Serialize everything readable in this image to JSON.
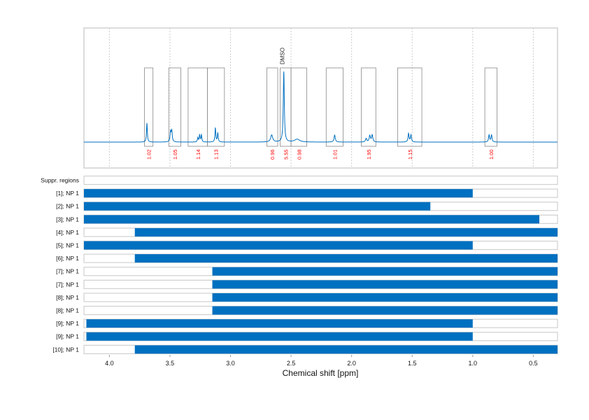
{
  "chart_data": {
    "type": "bar",
    "xlabel": "Chemical shift [ppm]",
    "xlim": [
      4.21,
      0.3
    ],
    "x_ticks": [
      "4.0",
      "3.5",
      "3.0",
      "2.5",
      "2.0",
      "1.5",
      "1.0",
      "0.5"
    ],
    "x_tick_values": [
      4.0,
      3.5,
      3.0,
      2.5,
      2.0,
      1.5,
      1.0,
      0.5
    ],
    "grid": true,
    "colors": {
      "spectrum": "#0070c0",
      "bar": "#0070c0",
      "integral_label": "#ff0000",
      "region_box": "#888888"
    },
    "spectrum": {
      "peaks": [
        {
          "ppm": 3.69,
          "height": 0.27,
          "width": 0.004
        },
        {
          "ppm": 3.495,
          "height": 0.14,
          "width": 0.005
        },
        {
          "ppm": 3.485,
          "height": 0.15,
          "width": 0.005
        },
        {
          "ppm": 3.27,
          "height": 0.06,
          "width": 0.004
        },
        {
          "ppm": 3.255,
          "height": 0.1,
          "width": 0.004
        },
        {
          "ppm": 3.24,
          "height": 0.1,
          "width": 0.004
        },
        {
          "ppm": 3.125,
          "height": 0.2,
          "width": 0.004
        },
        {
          "ppm": 3.105,
          "height": 0.13,
          "width": 0.004
        },
        {
          "ppm": 2.66,
          "height": 0.1,
          "width": 0.01
        },
        {
          "ppm": 2.56,
          "height": 1.0,
          "width": 0.005
        },
        {
          "ppm": 2.45,
          "height": 0.04,
          "width": 0.025
        },
        {
          "ppm": 2.14,
          "height": 0.1,
          "width": 0.006
        },
        {
          "ppm": 1.88,
          "height": 0.05,
          "width": 0.006
        },
        {
          "ppm": 1.85,
          "height": 0.09,
          "width": 0.006
        },
        {
          "ppm": 1.83,
          "height": 0.1,
          "width": 0.006
        },
        {
          "ppm": 1.53,
          "height": 0.12,
          "width": 0.005
        },
        {
          "ppm": 1.51,
          "height": 0.1,
          "width": 0.005
        },
        {
          "ppm": 0.865,
          "height": 0.1,
          "width": 0.005
        },
        {
          "ppm": 0.845,
          "height": 0.1,
          "width": 0.005
        }
      ],
      "annotation": {
        "label": "DMSO",
        "ppm": 2.55
      },
      "integration_regions": [
        {
          "from": 3.71,
          "to": 3.64,
          "value": "1.02"
        },
        {
          "from": 3.51,
          "to": 3.41,
          "value": "1.05"
        },
        {
          "from": 3.35,
          "to": 3.19,
          "value": "1.14"
        },
        {
          "from": 3.19,
          "to": 3.05,
          "value": "1.13"
        },
        {
          "from": 2.7,
          "to": 2.61,
          "value": "0.96"
        },
        {
          "from": 2.59,
          "to": 2.5,
          "value": "5.55"
        },
        {
          "from": 2.5,
          "to": 2.37,
          "value": "0.98"
        },
        {
          "from": 2.21,
          "to": 2.07,
          "value": "1.01"
        },
        {
          "from": 1.92,
          "to": 1.8,
          "value": "1.95"
        },
        {
          "from": 1.62,
          "to": 1.42,
          "value": "1.15"
        },
        {
          "from": 0.9,
          "to": 0.8,
          "value": "1.00"
        }
      ]
    },
    "rows": [
      {
        "label": "Suppr. regions",
        "from": null,
        "to": null
      },
      {
        "label": "[1]; NP 1",
        "from": 4.21,
        "to": 1.0
      },
      {
        "label": "[2]; NP 1",
        "from": 4.21,
        "to": 1.35
      },
      {
        "label": "[3]; NP 1",
        "from": 4.21,
        "to": 0.45
      },
      {
        "label": "[4]; NP 1",
        "from": 3.79,
        "to": 0.3
      },
      {
        "label": "[5]; NP 1",
        "from": 4.21,
        "to": 1.0
      },
      {
        "label": "[6]; NP 1",
        "from": 3.79,
        "to": 0.3
      },
      {
        "label": "[7]; NP 1",
        "from": 3.15,
        "to": 0.3
      },
      {
        "label": "[7]; NP 1",
        "from": 3.15,
        "to": 0.3
      },
      {
        "label": "[8]; NP 1",
        "from": 3.15,
        "to": 0.3
      },
      {
        "label": "[8]; NP 1",
        "from": 3.15,
        "to": 0.3
      },
      {
        "label": "[9]; NP 1",
        "from": 4.19,
        "to": 1.0
      },
      {
        "label": "[9]; NP 1",
        "from": 4.19,
        "to": 1.0
      },
      {
        "label": "[10]; NP 1",
        "from": 3.79,
        "to": 0.3
      }
    ]
  }
}
